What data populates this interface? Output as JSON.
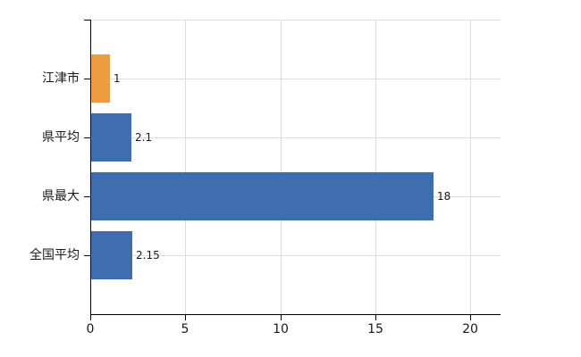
{
  "chart_data": {
    "type": "bar",
    "orientation": "horizontal",
    "title": "",
    "xlabel": "",
    "ylabel": "",
    "categories": [
      "江津市",
      "県平均",
      "県最大",
      "全国平均"
    ],
    "values": [
      1,
      2.1,
      18,
      2.15
    ],
    "value_labels": [
      "1",
      "2.1",
      "18",
      "2.15"
    ],
    "series": [
      {
        "name": "値",
        "values": [
          1,
          2.1,
          18,
          2.15
        ]
      }
    ],
    "bar_colors": [
      "#ed9c40",
      "#3e6eb0",
      "#3e6eb0",
      "#3e6eb0"
    ],
    "xticks": [
      0,
      5,
      10,
      15,
      20
    ],
    "xtick_labels": [
      "0",
      "5",
      "10",
      "15",
      "20"
    ],
    "xlim": [
      0,
      21.6
    ],
    "grid": true,
    "legend": "none"
  },
  "colors": {
    "background": "#ffffff",
    "bar_orange": "#ed9c40",
    "bar_blue": "#3e6eb0",
    "gridline": "#dddddd",
    "axis": "#000000",
    "text": "#1a1a1a"
  }
}
